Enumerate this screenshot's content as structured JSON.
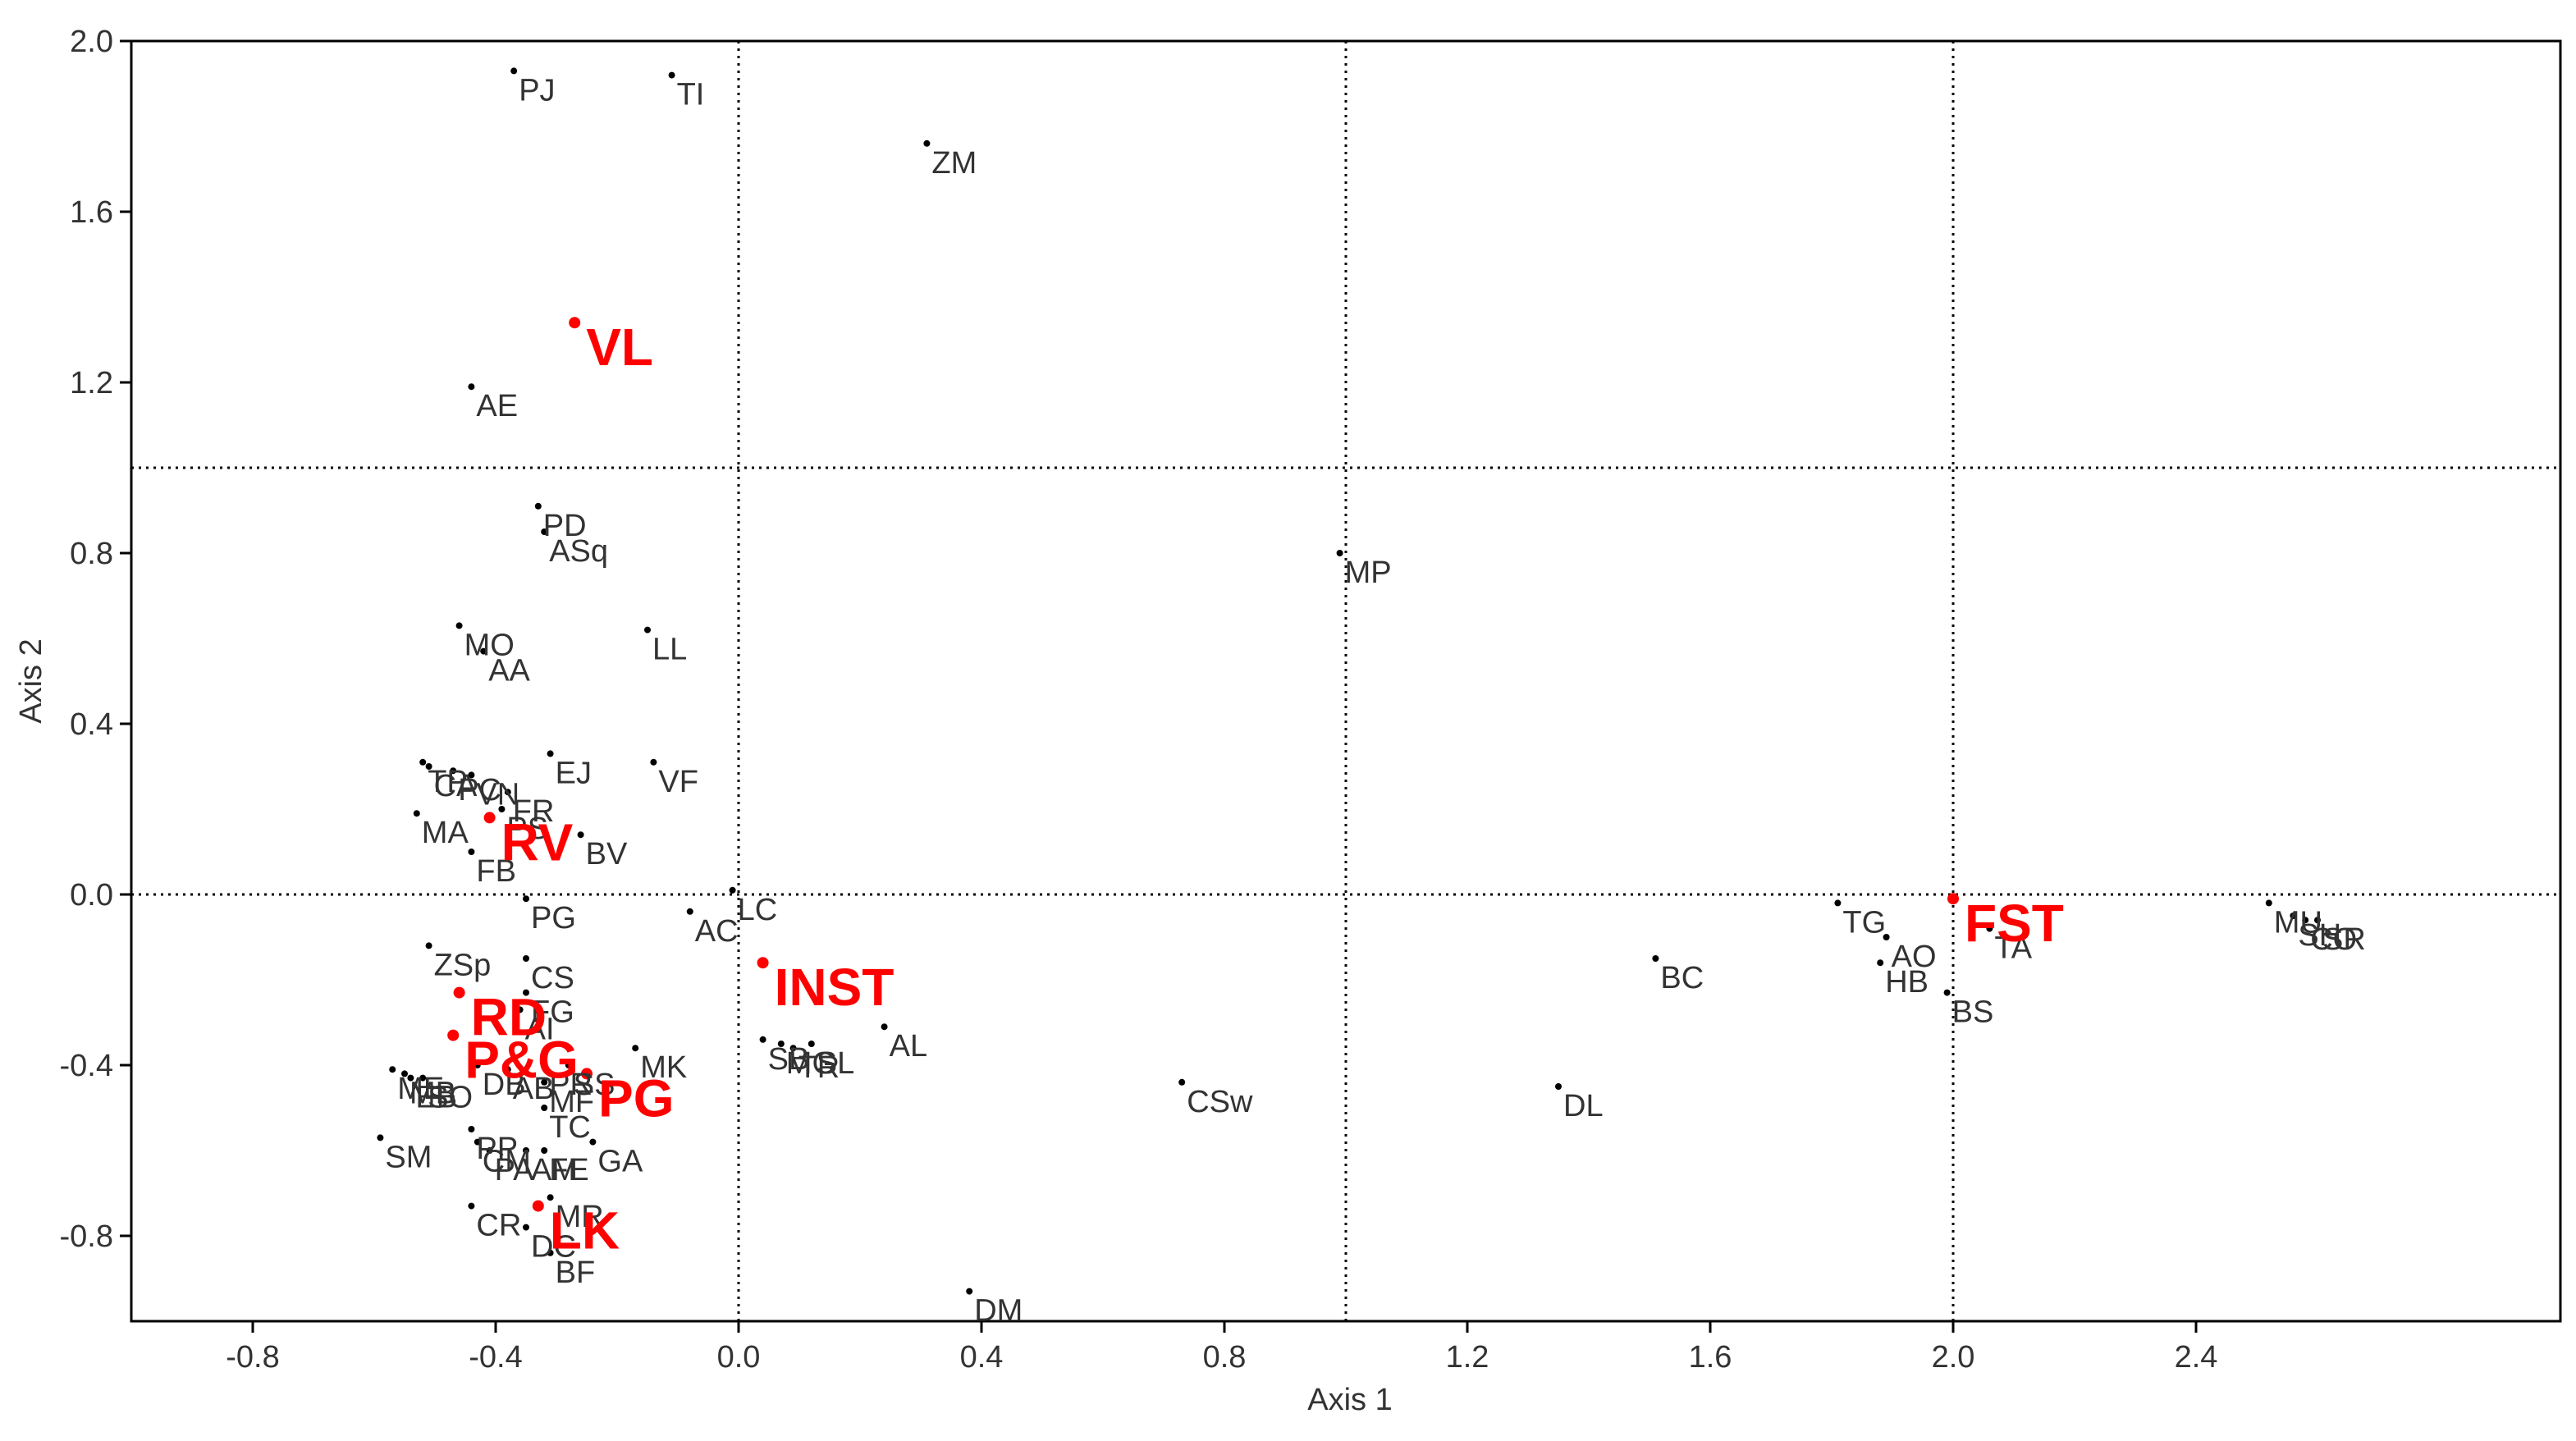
{
  "chart_data": {
    "type": "scatter",
    "title": "",
    "xlabel": "Axis 1",
    "ylabel": "Axis 2",
    "xlim": [
      -1.0,
      3.0
    ],
    "ylim": [
      -1.0,
      2.0
    ],
    "x_ticks": [
      "-0.8",
      "-0.4",
      "0.0",
      "0.4",
      "0.8",
      "1.2",
      "1.6",
      "2.0",
      "2.4"
    ],
    "y_ticks": [
      "2.0",
      "1.6",
      "1.2",
      "0.8",
      "0.4",
      "0.0",
      "-0.4",
      "-0.8"
    ],
    "x_tick_values": [
      -0.8,
      -0.4,
      0.0,
      0.4,
      0.8,
      1.2,
      1.6,
      2.0,
      2.4
    ],
    "y_tick_values": [
      2.0,
      1.6,
      1.2,
      0.8,
      0.4,
      0.0,
      -0.4,
      -0.8
    ],
    "grid": "dotted lines at x = 0, 1, 2 and y = 0, 1",
    "colors": {
      "points": "#000000",
      "groups": "#ff0000",
      "axes": "#333333"
    },
    "series": [
      {
        "name": "",
        "color": "#000000",
        "points": [
          {
            "label": "PJ",
            "x": -0.37,
            "y": 1.93
          },
          {
            "label": "TI",
            "x": -0.11,
            "y": 1.92
          },
          {
            "label": "ZM",
            "x": 0.31,
            "y": 1.76
          },
          {
            "label": "AE",
            "x": -0.44,
            "y": 1.19
          },
          {
            "label": "PD",
            "x": -0.33,
            "y": 0.91
          },
          {
            "label": "ASq",
            "x": -0.32,
            "y": 0.85
          },
          {
            "label": "MP",
            "x": 0.99,
            "y": 0.8
          },
          {
            "label": "MO",
            "x": -0.46,
            "y": 0.63
          },
          {
            "label": "AA",
            "x": -0.42,
            "y": 0.57
          },
          {
            "label": "LL",
            "x": -0.15,
            "y": 0.62
          },
          {
            "label": "EJ",
            "x": -0.31,
            "y": 0.33
          },
          {
            "label": "VF",
            "x": -0.14,
            "y": 0.31
          },
          {
            "label": "TP",
            "x": -0.52,
            "y": 0.31
          },
          {
            "label": "CA",
            "x": -0.51,
            "y": 0.3
          },
          {
            "label": "PC",
            "x": -0.47,
            "y": 0.29
          },
          {
            "label": "VN",
            "x": -0.44,
            "y": 0.28
          },
          {
            "label": "FR",
            "x": -0.38,
            "y": 0.24
          },
          {
            "label": "PS",
            "x": -0.39,
            "y": 0.2
          },
          {
            "label": "MA",
            "x": -0.53,
            "y": 0.19
          },
          {
            "label": "BV",
            "x": -0.26,
            "y": 0.14
          },
          {
            "label": "FB",
            "x": -0.44,
            "y": 0.1
          },
          {
            "label": "PG",
            "x": -0.35,
            "y": -0.01
          },
          {
            "label": "LC",
            "x": -0.01,
            "y": 0.01
          },
          {
            "label": "AC",
            "x": -0.08,
            "y": -0.04
          },
          {
            "label": "ZSp",
            "x": -0.51,
            "y": -0.12
          },
          {
            "label": "CS",
            "x": -0.35,
            "y": -0.15
          },
          {
            "label": "FG",
            "x": -0.35,
            "y": -0.23
          },
          {
            "label": "AI",
            "x": -0.36,
            "y": -0.27
          },
          {
            "label": "AL",
            "x": 0.24,
            "y": -0.31
          },
          {
            "label": "SB",
            "x": 0.04,
            "y": -0.34
          },
          {
            "label": "MG",
            "x": 0.07,
            "y": -0.35
          },
          {
            "label": "TR",
            "x": 0.09,
            "y": -0.36
          },
          {
            "label": "SL",
            "x": 0.12,
            "y": -0.35
          },
          {
            "label": "MK",
            "x": -0.17,
            "y": -0.36
          },
          {
            "label": "PR",
            "x": -0.32,
            "y": -0.4
          },
          {
            "label": "SS",
            "x": -0.28,
            "y": -0.4
          },
          {
            "label": "DB",
            "x": -0.43,
            "y": -0.4
          },
          {
            "label": "AB",
            "x": -0.38,
            "y": -0.41
          },
          {
            "label": "ME",
            "x": -0.57,
            "y": -0.41
          },
          {
            "label": "MB",
            "x": -0.55,
            "y": -0.42
          },
          {
            "label": "EB",
            "x": -0.54,
            "y": -0.43
          },
          {
            "label": "SO",
            "x": -0.52,
            "y": -0.43
          },
          {
            "label": "MF",
            "x": -0.32,
            "y": -0.44
          },
          {
            "label": "TC",
            "x": -0.32,
            "y": -0.5
          },
          {
            "label": "CSw",
            "x": 0.73,
            "y": -0.44
          },
          {
            "label": "DL",
            "x": 1.35,
            "y": -0.45
          },
          {
            "label": "SM",
            "x": -0.59,
            "y": -0.57
          },
          {
            "label": "PP",
            "x": -0.44,
            "y": -0.55
          },
          {
            "label": "CM",
            "x": -0.43,
            "y": -0.58
          },
          {
            "label": "PA",
            "x": -0.41,
            "y": -0.6
          },
          {
            "label": "AM",
            "x": -0.35,
            "y": -0.6
          },
          {
            "label": "FE",
            "x": -0.32,
            "y": -0.6
          },
          {
            "label": "GA",
            "x": -0.24,
            "y": -0.58
          },
          {
            "label": "CR",
            "x": -0.44,
            "y": -0.73
          },
          {
            "label": "MR",
            "x": -0.31,
            "y": -0.71
          },
          {
            "label": "DC",
            "x": -0.35,
            "y": -0.78
          },
          {
            "label": "BF",
            "x": -0.31,
            "y": -0.84
          },
          {
            "label": "DM",
            "x": 0.38,
            "y": -0.93
          },
          {
            "label": "BC",
            "x": 1.51,
            "y": -0.15
          },
          {
            "label": "TG",
            "x": 1.81,
            "y": -0.02
          },
          {
            "label": "AO",
            "x": 1.89,
            "y": -0.1
          },
          {
            "label": "HB",
            "x": 1.88,
            "y": -0.16
          },
          {
            "label": "BS",
            "x": 1.99,
            "y": -0.23
          },
          {
            "label": "TA",
            "x": 2.06,
            "y": -0.08
          },
          {
            "label": "MU",
            "x": 2.52,
            "y": -0.02
          },
          {
            "label": "SH",
            "x": 2.56,
            "y": -0.05
          },
          {
            "label": "CO",
            "x": 2.58,
            "y": -0.06
          },
          {
            "label": "SR",
            "x": 2.6,
            "y": -0.06
          }
        ]
      },
      {
        "name": "",
        "color": "#ff0000",
        "points": [
          {
            "label": "VL",
            "x": -0.27,
            "y": 1.34
          },
          {
            "label": "RV",
            "x": -0.41,
            "y": 0.18
          },
          {
            "label": "INST",
            "x": 0.04,
            "y": -0.16
          },
          {
            "label": "RD",
            "x": -0.46,
            "y": -0.23
          },
          {
            "label": "P&G",
            "x": -0.47,
            "y": -0.33
          },
          {
            "label": "PG",
            "x": -0.25,
            "y": -0.42
          },
          {
            "label": "LK",
            "x": -0.33,
            "y": -0.73
          },
          {
            "label": "FST",
            "x": 2.0,
            "y": -0.01
          }
        ]
      }
    ]
  }
}
